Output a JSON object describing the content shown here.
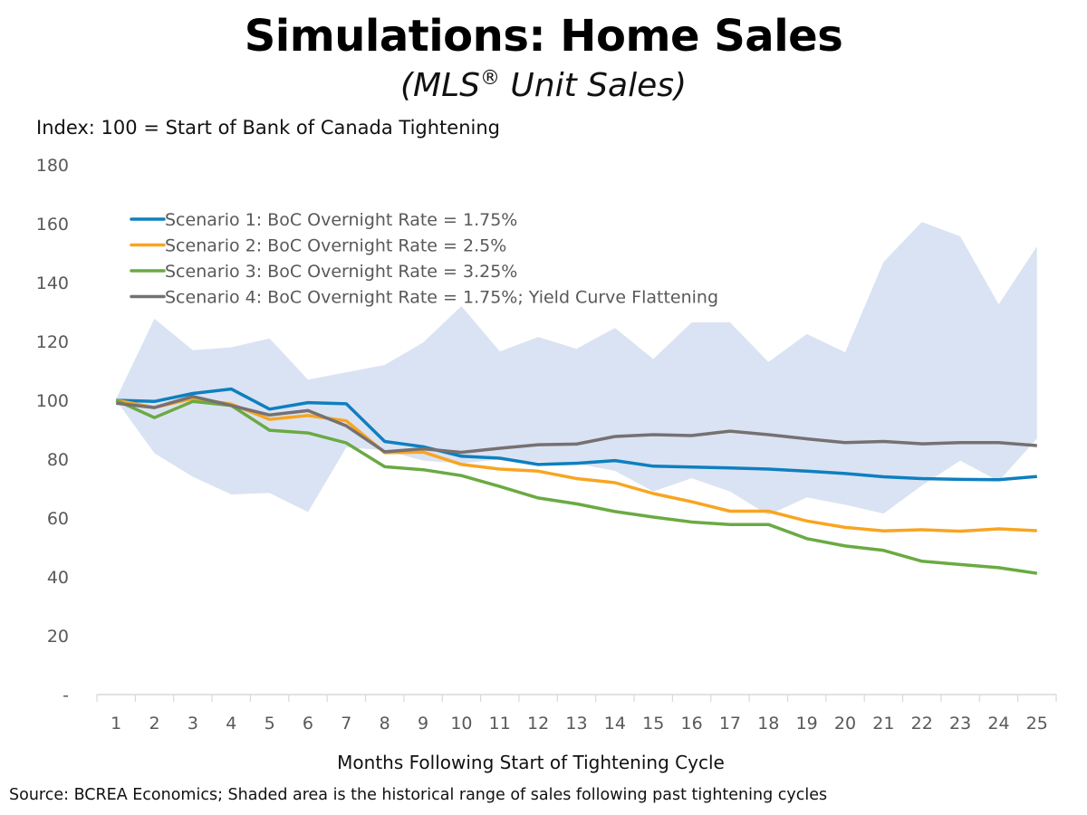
{
  "header": {
    "title": "Simulations: Home Sales",
    "subtitle_pre": "(MLS",
    "subtitle_sup": "®",
    "subtitle_post": " Unit Sales)",
    "index_note": "Index: 100 = Start of Bank of Canada Tightening"
  },
  "footer": {
    "source": "Source: BCREA Economics;  Shaded area is the historical range of sales following past tightening cycles"
  },
  "chart_data": {
    "type": "line",
    "title": "Simulations: Home Sales",
    "subtitle": "(MLS® Unit Sales)",
    "ylabel": "Index: 100 = Start of Bank of Canada Tightening",
    "xlabel": "Months Following Start of Tightening Cycle",
    "ylim": [
      0,
      180
    ],
    "yticks": [
      0,
      20,
      40,
      60,
      80,
      100,
      120,
      140,
      160,
      180
    ],
    "ytick_labels": [
      "-",
      "20",
      "40",
      "60",
      "80",
      "100",
      "120",
      "140",
      "160",
      "180"
    ],
    "categories": [
      "1",
      "2",
      "3",
      "4",
      "5",
      "6",
      "7",
      "8",
      "9",
      "10",
      "11",
      "12",
      "13",
      "14",
      "15",
      "16",
      "17",
      "18",
      "19",
      "20",
      "21",
      "22",
      "23",
      "24",
      "25"
    ],
    "grid": false,
    "legend_position": "top-left",
    "band": {
      "name": "Historical range of sales following past tightening cycles",
      "color": "#dae3f3",
      "upper": [
        100.5,
        127.7,
        117,
        118,
        121,
        107,
        109.5,
        112,
        119.6,
        132,
        116.6,
        121.5,
        117.5,
        124.6,
        114,
        126.5,
        126.5,
        113,
        122.5,
        116.3,
        147,
        160.6,
        155.7,
        132.6,
        152.3
      ],
      "lower": [
        100,
        82,
        74,
        68,
        68.5,
        62,
        84,
        83,
        79.5,
        78.5,
        80,
        79,
        78.5,
        76,
        69,
        73.5,
        69,
        61,
        67,
        64.5,
        61.5,
        71,
        79.5,
        72.5,
        87
      ]
    },
    "series": [
      {
        "name": "Scenario 1: BoC Overnight Rate = 1.75%",
        "color": "#0e7fbf",
        "values": [
          100,
          99.6,
          102.3,
          103.8,
          97,
          99.2,
          98.8,
          86,
          84.2,
          81,
          80.3,
          78.2,
          78.6,
          79.5,
          77.6,
          77.3,
          77,
          76.6,
          75.9,
          75.1,
          74,
          73.4,
          73.1,
          73,
          74.1
        ]
      },
      {
        "name": "Scenario 2: BoC Overnight Rate = 2.5%",
        "color": "#f8a521",
        "values": [
          100,
          97.5,
          100.6,
          98.7,
          93.5,
          94.8,
          93,
          82.2,
          82.4,
          78.2,
          76.6,
          75.9,
          73.4,
          72,
          68.3,
          65.5,
          62.3,
          62.3,
          59,
          56.8,
          55.6,
          56,
          55.5,
          56.3,
          55.7
        ]
      },
      {
        "name": "Scenario 3: BoC Overnight Rate = 3.25%",
        "color": "#6aaa43",
        "values": [
          100,
          94.1,
          99.6,
          98.2,
          89.8,
          88.9,
          85.5,
          77.4,
          76.4,
          74.4,
          70.7,
          66.8,
          64.8,
          62.2,
          60.3,
          58.6,
          57.8,
          57.8,
          53,
          50.5,
          49,
          45.3,
          44.2,
          43.1,
          41.2
        ]
      },
      {
        "name": "Scenario 4: BoC Overnight Rate = 1.75%; Yield Curve Flattening",
        "color": "#767171",
        "values": [
          99,
          97.5,
          101.3,
          98.2,
          95,
          96.5,
          91.3,
          82.5,
          83.5,
          82.3,
          83.7,
          84.9,
          85.1,
          87.7,
          88.3,
          88,
          89.5,
          88.3,
          86.9,
          85.6,
          86,
          85.2,
          85.6,
          85.6,
          84.6
        ]
      }
    ]
  }
}
